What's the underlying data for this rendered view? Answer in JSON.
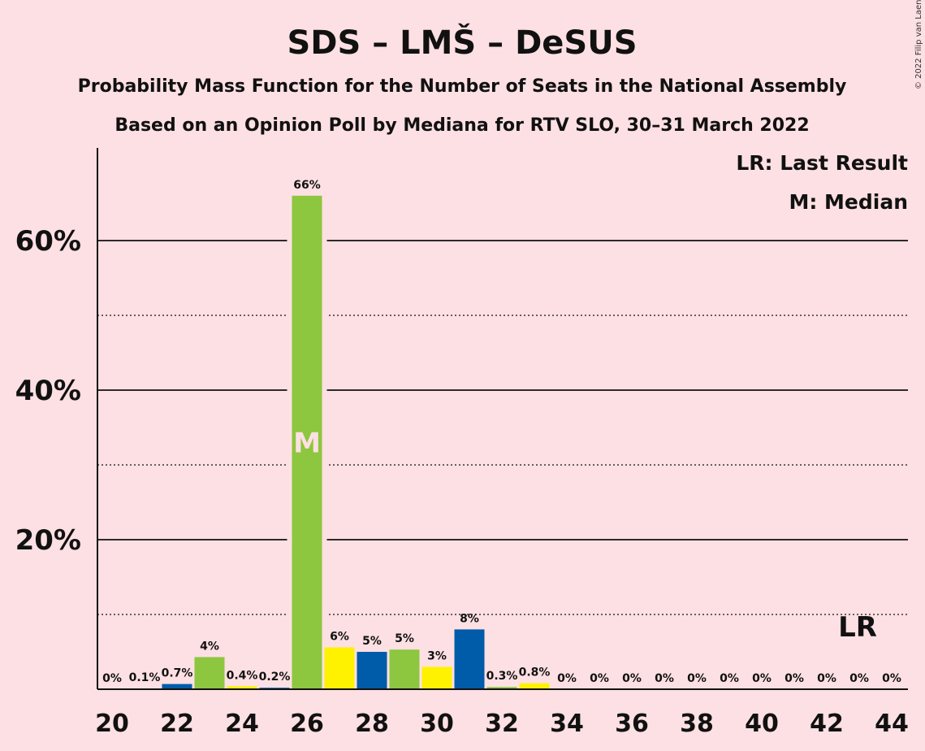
{
  "chart_data": {
    "type": "bar",
    "title": "SDS – LMŠ – DeSUS",
    "subtitle_1": "Probability Mass Function for the Number of Seats in the National Assembly",
    "subtitle_2": "Based on an Opinion Poll by Mediana for RTV SLO, 30–31 March 2022",
    "copyright": "© 2022 Filip van Laenen",
    "legend": {
      "last_result": "LR: Last Result",
      "median": "M: Median"
    },
    "median_mark": "M",
    "lr_mark": "LR",
    "median_seat": 26,
    "last_result_seat": 43,
    "ylim": [
      0,
      72
    ],
    "yticks": [
      {
        "value": 20,
        "label": "20%"
      },
      {
        "value": 40,
        "label": "40%"
      },
      {
        "value": 60,
        "label": "60%"
      }
    ],
    "minor_gridlines": [
      10,
      30,
      50
    ],
    "xticks": [
      "20",
      "22",
      "24",
      "26",
      "28",
      "30",
      "32",
      "34",
      "36",
      "38",
      "40",
      "42",
      "44"
    ],
    "x": [
      20,
      21,
      22,
      23,
      24,
      25,
      26,
      27,
      28,
      29,
      30,
      31,
      32,
      33,
      34,
      35,
      36,
      37,
      38,
      39,
      40,
      41,
      42,
      43,
      44
    ],
    "values": [
      0,
      0.1,
      0.7,
      4.3,
      0.4,
      0.2,
      66,
      5.6,
      5,
      5.3,
      3,
      8,
      0.3,
      0.8,
      0,
      0,
      0,
      0,
      0,
      0,
      0,
      0,
      0,
      0,
      0
    ],
    "labels": [
      "0%",
      "0.1%",
      "0.7%",
      "4%",
      "0.4%",
      "0.2%",
      "66%",
      "6%",
      "5%",
      "5%",
      "3%",
      "8%",
      "0.3%",
      "0.8%",
      "0%",
      "0%",
      "0%",
      "0%",
      "0%",
      "0%",
      "0%",
      "0%",
      "0%",
      "0%",
      "0%"
    ],
    "bar_colors": [
      "#005ba9",
      "#8dc63f",
      "#005ba9",
      "#8dc63f",
      "#fff200",
      "#005ba9",
      "#8dc63f",
      "#fff200",
      "#005ba9",
      "#8dc63f",
      "#fff200",
      "#005ba9",
      "#8dc63f",
      "#fff200",
      "#005ba9",
      "#8dc63f",
      "#fff200",
      "#005ba9",
      "#8dc63f",
      "#fff200",
      "#005ba9",
      "#8dc63f",
      "#fff200",
      "#005ba9",
      "#8dc63f"
    ],
    "colors": {
      "background": "#fde0e3",
      "sds_blue": "#005ba9",
      "lms_green": "#8dc63f",
      "desus_yellow": "#fff200"
    }
  }
}
